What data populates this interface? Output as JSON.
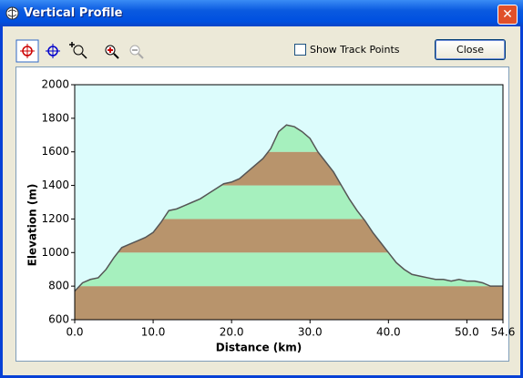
{
  "window": {
    "title": "Vertical Profile"
  },
  "controls": {
    "show_track_points": "Show Track Points",
    "close": "Close"
  },
  "chart_data": {
    "type": "area",
    "xlabel": "Distance  (km)",
    "ylabel": "Elevation  (m)",
    "x": [
      0,
      1,
      2,
      3,
      4,
      5,
      6,
      7,
      8,
      9,
      10,
      11,
      12,
      13,
      14,
      15,
      16,
      17,
      18,
      19,
      20,
      21,
      22,
      23,
      24,
      25,
      26,
      27,
      28,
      29,
      30,
      31,
      32,
      33,
      34,
      35,
      36,
      37,
      38,
      39,
      40,
      41,
      42,
      43,
      44,
      45,
      46,
      47,
      48,
      49,
      50,
      51,
      52,
      53,
      54,
      54.6
    ],
    "values": [
      770,
      820,
      840,
      850,
      900,
      970,
      1030,
      1050,
      1070,
      1090,
      1120,
      1180,
      1250,
      1260,
      1280,
      1300,
      1320,
      1350,
      1380,
      1410,
      1420,
      1440,
      1480,
      1520,
      1560,
      1620,
      1720,
      1760,
      1750,
      1720,
      1680,
      1600,
      1540,
      1480,
      1400,
      1320,
      1250,
      1190,
      1120,
      1060,
      1000,
      940,
      900,
      870,
      860,
      850,
      840,
      840,
      830,
      840,
      830,
      830,
      820,
      800,
      800,
      800
    ],
    "xlim": [
      0,
      54.6
    ],
    "xticks": [
      {
        "value": 0,
        "label": "0.0"
      },
      {
        "value": 10,
        "label": "10.0"
      },
      {
        "value": 20,
        "label": "20.0"
      },
      {
        "value": 30,
        "label": "30.0"
      },
      {
        "value": 40,
        "label": "40.0"
      },
      {
        "value": 50,
        "label": "50.0"
      },
      54.6
    ],
    "ylim": [
      600,
      2000
    ],
    "yticks": [
      600,
      800,
      1000,
      1200,
      1400,
      1600,
      1800,
      2000
    ],
    "band_colors": [
      "#b8946c",
      "#a6f0be"
    ],
    "line_color": "#555555",
    "background": "#dcfcfc"
  }
}
